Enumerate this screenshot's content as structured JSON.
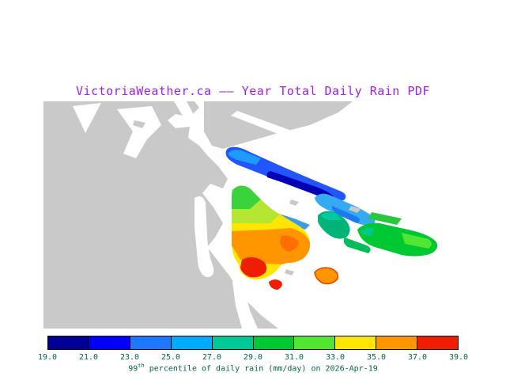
{
  "title": {
    "text": "VictoriaWeather.ca —— Year Total Daily Rain PDF",
    "color": "#a020f0"
  },
  "caption": {
    "prefix": "99",
    "sup": "th",
    "rest": " percentile of daily rain (mm/day) on 2026-Apr-19",
    "color": "#006644"
  },
  "colorbar": {
    "tick_labels": [
      "19.0",
      "21.0",
      "23.0",
      "25.0",
      "27.0",
      "29.0",
      "31.0",
      "33.0",
      "35.0",
      "37.0",
      "39.0"
    ],
    "colors": [
      "#000096",
      "#0000ff",
      "#1e78ff",
      "#00aaff",
      "#00c896",
      "#00c832",
      "#50e632",
      "#ffe600",
      "#ff9600",
      "#f01e00"
    ],
    "tick_color": "#006644",
    "border_color": "#000000"
  },
  "map": {
    "colors": {
      "land": "#c9c9c9",
      "white": "#ffffff",
      "galiano_base": "#2355ff",
      "galiano_tip": "#1e9bff",
      "galiano_core": "#0000b4",
      "mayne_base": "#35aaf0",
      "mayne_core": "#1e78f0",
      "prevost": "#3c9be6",
      "pender_base": "#00b478",
      "pender_patch": "#00c8a0",
      "pender_south": "#00be5a",
      "saturna_base": "#00c832",
      "saturna_east": "#50e632",
      "saturna_west": "#00c88c",
      "samuel": "#28c83c",
      "saltspring_base": "#ffe600",
      "saltspring_north": "#3cd23c",
      "saltspring_band": "#b4e632",
      "saltspring_orange": "#ff9600",
      "saltspring_deep": "#ff6e00",
      "saltspring_red": "#f01e00",
      "red_islet": "#f01e00",
      "moresby": "#ff9600",
      "moresby_rim": "#e64600"
    }
  },
  "chart_data": {
    "type": "heatmap",
    "title": "VictoriaWeather.ca —— Year Total Daily Rain PDF",
    "variable": "99th percentile of daily rain",
    "units": "mm/day",
    "date": "2026-Apr-19",
    "legend_position": "bottom",
    "scale_ticks": [
      19.0,
      21.0,
      23.0,
      25.0,
      27.0,
      29.0,
      31.0,
      33.0,
      35.0,
      37.0,
      39.0
    ],
    "scale_colors": [
      "#000096",
      "#0000ff",
      "#1e78ff",
      "#00aaff",
      "#00c896",
      "#00c832",
      "#50e632",
      "#ffe600",
      "#ff9600",
      "#f01e00"
    ],
    "regions_approx": [
      {
        "name": "galiano-island",
        "value_range_mm_day": "19-23"
      },
      {
        "name": "mayne-island",
        "value_range_mm_day": "23-27"
      },
      {
        "name": "prevost-islet",
        "value_range_mm_day": "23-25"
      },
      {
        "name": "pender-islands",
        "value_range_mm_day": "27-29"
      },
      {
        "name": "saturna-island",
        "value_range_mm_day": "29-33"
      },
      {
        "name": "saltspring-north",
        "value_range_mm_day": "29-33"
      },
      {
        "name": "saltspring-central",
        "value_range_mm_day": "33-37"
      },
      {
        "name": "saltspring-southwest",
        "value_range_mm_day": "37-39"
      },
      {
        "name": "south-islet",
        "value_range_mm_day": "37-39"
      },
      {
        "name": "moresby-islet",
        "value_range_mm_day": "35-37"
      }
    ]
  }
}
